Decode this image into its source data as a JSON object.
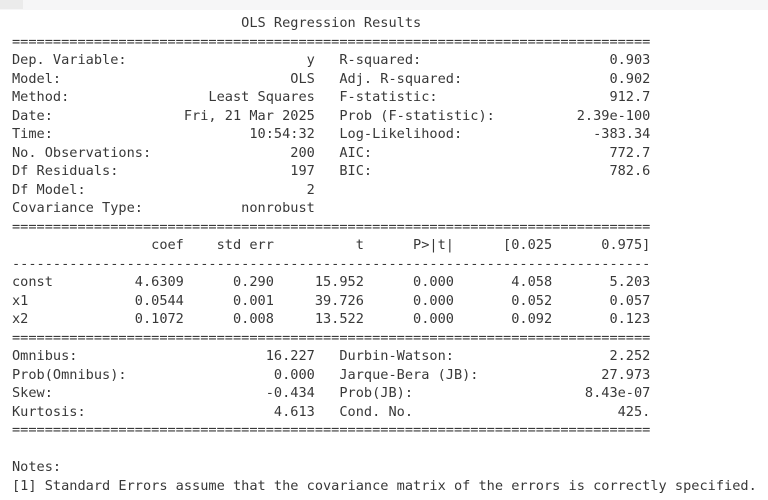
{
  "colors": {
    "background": "#ffffff",
    "text": "#383838",
    "top_bar": "#f6f6f7",
    "top_bar_corner": "#ebebeb"
  },
  "report": {
    "title": "OLS Regression Results",
    "info_table": {
      "rows": [
        [
          {
            "label": "Dep. Variable:",
            "value": "y"
          },
          {
            "label": "R-squared:",
            "value": "0.903"
          }
        ],
        [
          {
            "label": "Model:",
            "value": "OLS"
          },
          {
            "label": "Adj. R-squared:",
            "value": "0.902"
          }
        ],
        [
          {
            "label": "Method:",
            "value": "Least Squares"
          },
          {
            "label": "F-statistic:",
            "value": "912.7"
          }
        ],
        [
          {
            "label": "Date:",
            "value": "Fri, 21 Mar 2025"
          },
          {
            "label": "Prob (F-statistic):",
            "value": "2.39e-100"
          }
        ],
        [
          {
            "label": "Time:",
            "value": "10:54:32"
          },
          {
            "label": "Log-Likelihood:",
            "value": "-383.34"
          }
        ],
        [
          {
            "label": "No. Observations:",
            "value": "200"
          },
          {
            "label": "AIC:",
            "value": "772.7"
          }
        ],
        [
          {
            "label": "Df Residuals:",
            "value": "197"
          },
          {
            "label": "BIC:",
            "value": "782.6"
          }
        ],
        [
          {
            "label": "Df Model:",
            "value": "2"
          },
          null
        ],
        [
          {
            "label": "Covariance Type:",
            "value": "nonrobust"
          },
          null
        ]
      ]
    },
    "coef_table": {
      "headers": [
        "",
        "coef",
        "std err",
        "t",
        "P>|t|",
        "[0.025",
        "0.975]"
      ],
      "rows": [
        [
          "const",
          "4.6309",
          "0.290",
          "15.952",
          "0.000",
          "4.058",
          "5.203"
        ],
        [
          "x1",
          "0.0544",
          "0.001",
          "39.726",
          "0.000",
          "0.052",
          "0.057"
        ],
        [
          "x2",
          "0.1072",
          "0.008",
          "13.522",
          "0.000",
          "0.092",
          "0.123"
        ]
      ]
    },
    "diagnostics_table": {
      "rows": [
        [
          {
            "label": "Omnibus:",
            "value": "16.227"
          },
          {
            "label": "Durbin-Watson:",
            "value": "2.252"
          }
        ],
        [
          {
            "label": "Prob(Omnibus):",
            "value": "0.000"
          },
          {
            "label": "Jarque-Bera (JB):",
            "value": "27.973"
          }
        ],
        [
          {
            "label": "Skew:",
            "value": "-0.434"
          },
          {
            "label": "Prob(JB):",
            "value": "8.43e-07"
          }
        ],
        [
          {
            "label": "Kurtosis:",
            "value": "4.613"
          },
          {
            "label": "Cond. No.",
            "value": "425."
          }
        ]
      ]
    },
    "notes": [
      "Notes:",
      "[1] Standard Errors assume that the covariance matrix of the errors is correctly specified."
    ]
  }
}
